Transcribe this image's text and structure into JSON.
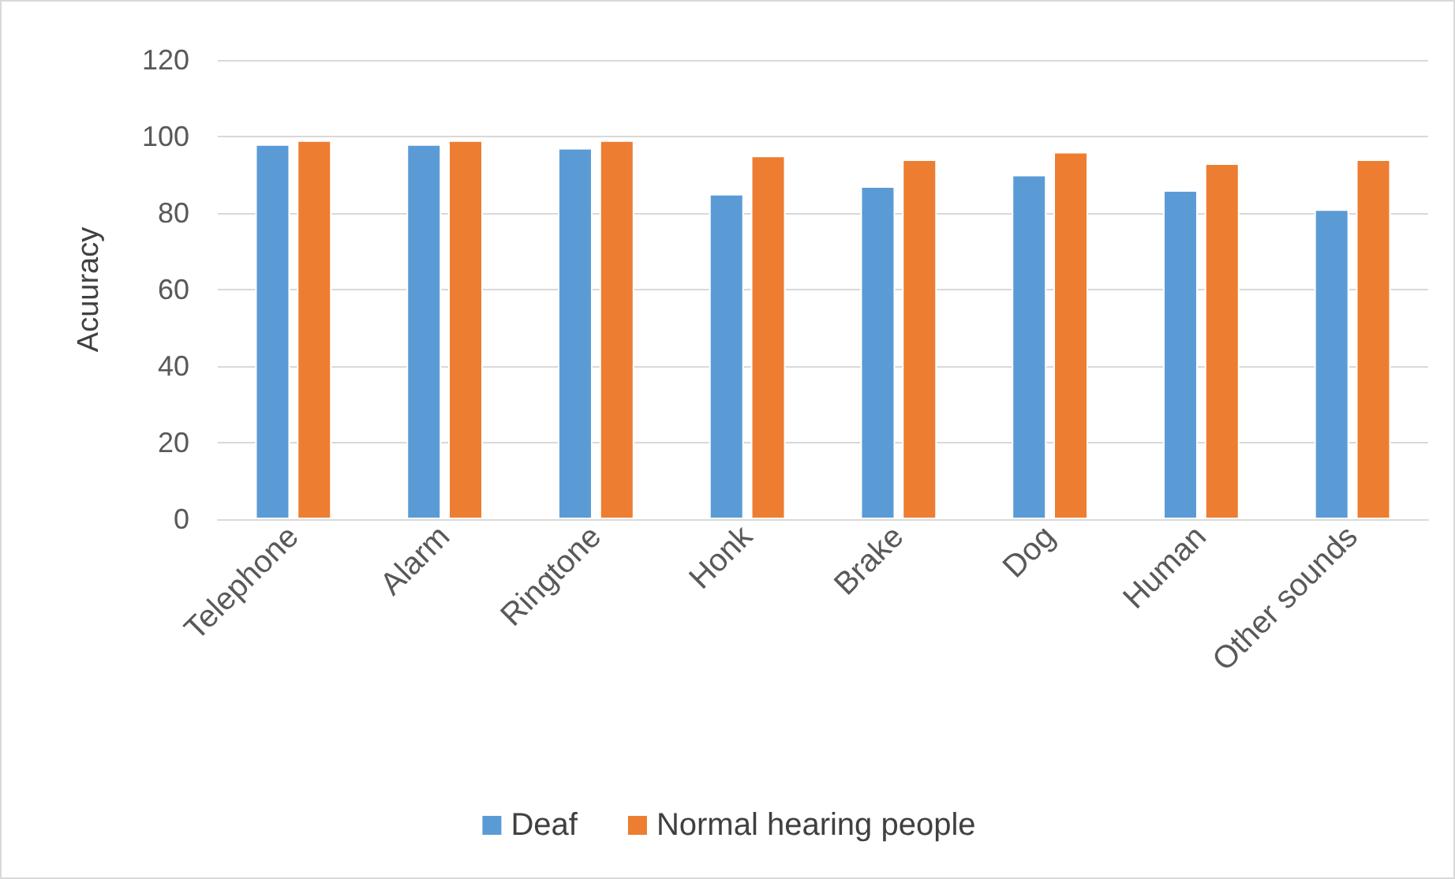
{
  "chart_data": {
    "type": "bar",
    "ylabel": "Acuuracy",
    "categories": [
      "Telephone",
      "Alarm",
      "Ringtone",
      "Honk",
      "Brake",
      "Dog",
      "Human",
      "Other sounds"
    ],
    "series": [
      {
        "name": "Deaf",
        "color": "#5b9bd5",
        "values": [
          98,
          98,
          97,
          85,
          87,
          90,
          86,
          81
        ]
      },
      {
        "name": "Normal hearing people",
        "color": "#ed7d31",
        "values": [
          99,
          99,
          99,
          95,
          94,
          96,
          93,
          94
        ]
      }
    ],
    "ylim": [
      0,
      120
    ],
    "yticks": [
      0,
      20,
      40,
      60,
      80,
      100,
      120
    ],
    "grid": "y",
    "legend": "bottom"
  }
}
